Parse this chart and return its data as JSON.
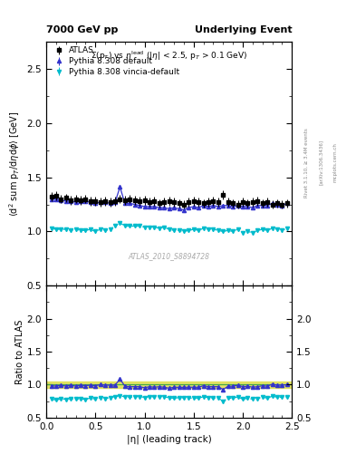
{
  "title_left": "7000 GeV pp",
  "title_right": "Underlying Event",
  "subtitle": "Σ(p_{T}) vs η^{lead} (|η| < 2.5, p_{T} > 0.1 GeV)",
  "ylabel_main": "⟨d² sum p_{T}/dηdϕ⟩ [GeV]",
  "ylabel_ratio": "Ratio to ATLAS",
  "xlabel": "|η| (leading track)",
  "watermark": "ATLAS_2010_S8894728",
  "rivet_text": "Rivet 3.1.10, ≥ 3.4M events",
  "arxiv_text": "[arXiv:1306.3436]",
  "mcplots_text": "mcplots.cern.ch",
  "ylim_main": [
    0.5,
    2.75
  ],
  "ylim_ratio": [
    0.5,
    2.5
  ],
  "xlim": [
    0,
    2.5
  ],
  "atlas_x": [
    0.05,
    0.1,
    0.15,
    0.2,
    0.25,
    0.3,
    0.35,
    0.4,
    0.45,
    0.5,
    0.55,
    0.6,
    0.65,
    0.7,
    0.75,
    0.8,
    0.85,
    0.9,
    0.95,
    1.0,
    1.05,
    1.1,
    1.15,
    1.2,
    1.25,
    1.3,
    1.35,
    1.4,
    1.45,
    1.5,
    1.55,
    1.6,
    1.65,
    1.7,
    1.75,
    1.8,
    1.85,
    1.9,
    1.95,
    2.0,
    2.05,
    2.1,
    2.15,
    2.2,
    2.25,
    2.3,
    2.35,
    2.4,
    2.45
  ],
  "atlas_y": [
    1.32,
    1.33,
    1.3,
    1.31,
    1.29,
    1.3,
    1.29,
    1.3,
    1.28,
    1.28,
    1.27,
    1.28,
    1.27,
    1.28,
    1.3,
    1.29,
    1.3,
    1.29,
    1.28,
    1.29,
    1.27,
    1.28,
    1.26,
    1.27,
    1.28,
    1.27,
    1.26,
    1.25,
    1.27,
    1.28,
    1.27,
    1.26,
    1.27,
    1.28,
    1.27,
    1.34,
    1.27,
    1.26,
    1.25,
    1.27,
    1.26,
    1.27,
    1.28,
    1.26,
    1.27,
    1.25,
    1.26,
    1.25,
    1.26
  ],
  "atlas_yerr": [
    0.04,
    0.04,
    0.04,
    0.04,
    0.04,
    0.04,
    0.04,
    0.04,
    0.04,
    0.04,
    0.04,
    0.04,
    0.04,
    0.04,
    0.04,
    0.04,
    0.04,
    0.04,
    0.04,
    0.04,
    0.04,
    0.04,
    0.04,
    0.04,
    0.04,
    0.04,
    0.04,
    0.04,
    0.04,
    0.04,
    0.04,
    0.04,
    0.04,
    0.04,
    0.04,
    0.04,
    0.04,
    0.04,
    0.04,
    0.04,
    0.04,
    0.04,
    0.04,
    0.04,
    0.04,
    0.04,
    0.04,
    0.04,
    0.04
  ],
  "py_default_x": [
    0.05,
    0.1,
    0.15,
    0.2,
    0.25,
    0.3,
    0.35,
    0.4,
    0.45,
    0.5,
    0.55,
    0.6,
    0.65,
    0.7,
    0.75,
    0.8,
    0.85,
    0.9,
    0.95,
    1.0,
    1.05,
    1.1,
    1.15,
    1.2,
    1.25,
    1.3,
    1.35,
    1.4,
    1.45,
    1.5,
    1.55,
    1.6,
    1.65,
    1.7,
    1.75,
    1.8,
    1.85,
    1.9,
    1.95,
    2.0,
    2.05,
    2.1,
    2.15,
    2.2,
    2.25,
    2.3,
    2.35,
    2.4,
    2.45
  ],
  "py_default_y": [
    1.3,
    1.3,
    1.29,
    1.28,
    1.28,
    1.27,
    1.28,
    1.28,
    1.27,
    1.26,
    1.27,
    1.27,
    1.26,
    1.27,
    1.41,
    1.26,
    1.26,
    1.25,
    1.24,
    1.23,
    1.23,
    1.23,
    1.22,
    1.22,
    1.21,
    1.22,
    1.21,
    1.2,
    1.22,
    1.23,
    1.22,
    1.24,
    1.23,
    1.24,
    1.23,
    1.24,
    1.24,
    1.23,
    1.24,
    1.23,
    1.23,
    1.22,
    1.24,
    1.24,
    1.24,
    1.26,
    1.25,
    1.24,
    1.26
  ],
  "py_default_yerr": [
    0.015,
    0.015,
    0.015,
    0.015,
    0.015,
    0.015,
    0.015,
    0.015,
    0.015,
    0.015,
    0.015,
    0.015,
    0.015,
    0.015,
    0.015,
    0.015,
    0.015,
    0.015,
    0.015,
    0.015,
    0.015,
    0.015,
    0.015,
    0.015,
    0.015,
    0.015,
    0.015,
    0.015,
    0.015,
    0.015,
    0.015,
    0.015,
    0.015,
    0.015,
    0.015,
    0.015,
    0.015,
    0.015,
    0.015,
    0.015,
    0.015,
    0.015,
    0.015,
    0.015,
    0.015,
    0.015,
    0.015,
    0.015,
    0.015
  ],
  "py_vincia_x": [
    0.05,
    0.1,
    0.15,
    0.2,
    0.25,
    0.3,
    0.35,
    0.4,
    0.45,
    0.5,
    0.55,
    0.6,
    0.65,
    0.7,
    0.75,
    0.8,
    0.85,
    0.9,
    0.95,
    1.0,
    1.05,
    1.1,
    1.15,
    1.2,
    1.25,
    1.3,
    1.35,
    1.4,
    1.45,
    1.5,
    1.55,
    1.6,
    1.65,
    1.7,
    1.75,
    1.8,
    1.85,
    1.9,
    1.95,
    2.0,
    2.05,
    2.1,
    2.15,
    2.2,
    2.25,
    2.3,
    2.35,
    2.4,
    2.45
  ],
  "py_vincia_y": [
    1.03,
    1.02,
    1.02,
    1.02,
    1.01,
    1.02,
    1.01,
    1.01,
    1.02,
    1.0,
    1.02,
    1.01,
    1.02,
    1.05,
    1.08,
    1.05,
    1.05,
    1.05,
    1.05,
    1.04,
    1.04,
    1.04,
    1.03,
    1.04,
    1.02,
    1.01,
    1.01,
    1.0,
    1.01,
    1.02,
    1.01,
    1.03,
    1.02,
    1.02,
    1.01,
    1.0,
    1.01,
    1.0,
    1.02,
    0.99,
    1.0,
    0.99,
    1.01,
    1.02,
    1.01,
    1.03,
    1.02,
    1.01,
    1.03
  ],
  "py_vincia_yerr": [
    0.015,
    0.015,
    0.015,
    0.015,
    0.015,
    0.015,
    0.015,
    0.015,
    0.015,
    0.015,
    0.015,
    0.015,
    0.015,
    0.015,
    0.015,
    0.015,
    0.015,
    0.015,
    0.015,
    0.015,
    0.015,
    0.015,
    0.015,
    0.015,
    0.015,
    0.015,
    0.015,
    0.015,
    0.015,
    0.015,
    0.015,
    0.015,
    0.015,
    0.015,
    0.015,
    0.015,
    0.015,
    0.015,
    0.015,
    0.015,
    0.015,
    0.015,
    0.015,
    0.015,
    0.015,
    0.015,
    0.015,
    0.015,
    0.015
  ],
  "ratio_default_y": [
    0.985,
    0.977,
    0.992,
    0.977,
    0.992,
    0.977,
    0.992,
    0.985,
    0.992,
    0.984,
    1.0,
    0.992,
    0.992,
    0.992,
    1.085,
    0.977,
    0.969,
    0.969,
    0.969,
    0.953,
    0.969,
    0.961,
    0.968,
    0.961,
    0.945,
    0.961,
    0.96,
    0.96,
    0.961,
    0.961,
    0.961,
    0.984,
    0.969,
    0.969,
    0.969,
    0.925,
    0.976,
    0.976,
    0.992,
    0.969,
    0.976,
    0.961,
    0.969,
    0.984,
    0.976,
    1.008,
    0.992,
    0.992,
    1.0
  ],
  "ratio_vincia_y": [
    0.78,
    0.767,
    0.785,
    0.779,
    0.782,
    0.785,
    0.782,
    0.777,
    0.797,
    0.781,
    0.803,
    0.789,
    0.803,
    0.82,
    0.831,
    0.814,
    0.808,
    0.814,
    0.82,
    0.806,
    0.819,
    0.813,
    0.817,
    0.819,
    0.797,
    0.795,
    0.802,
    0.8,
    0.795,
    0.797,
    0.795,
    0.817,
    0.803,
    0.797,
    0.795,
    0.746,
    0.795,
    0.794,
    0.816,
    0.78,
    0.794,
    0.78,
    0.789,
    0.81,
    0.795,
    0.824,
    0.81,
    0.808,
    0.817
  ],
  "atlas_color": "#000000",
  "py_default_color": "#3333cc",
  "py_vincia_color": "#00bbcc",
  "ratio_band_color": "#dddd44",
  "ratio_band_edge_color": "#44aa44",
  "background_color": "#ffffff",
  "legend_atlas": "ATLAS",
  "legend_default": "Pythia 8.308 default",
  "legend_vincia": "Pythia 8.308 vincia-default",
  "yticks_main": [
    0.5,
    1.0,
    1.5,
    2.0,
    2.5
  ],
  "yticks_ratio": [
    0.5,
    1.0,
    1.5,
    2.0
  ],
  "xticks": [
    0,
    0.5,
    1.0,
    1.5,
    2.0,
    2.5
  ]
}
